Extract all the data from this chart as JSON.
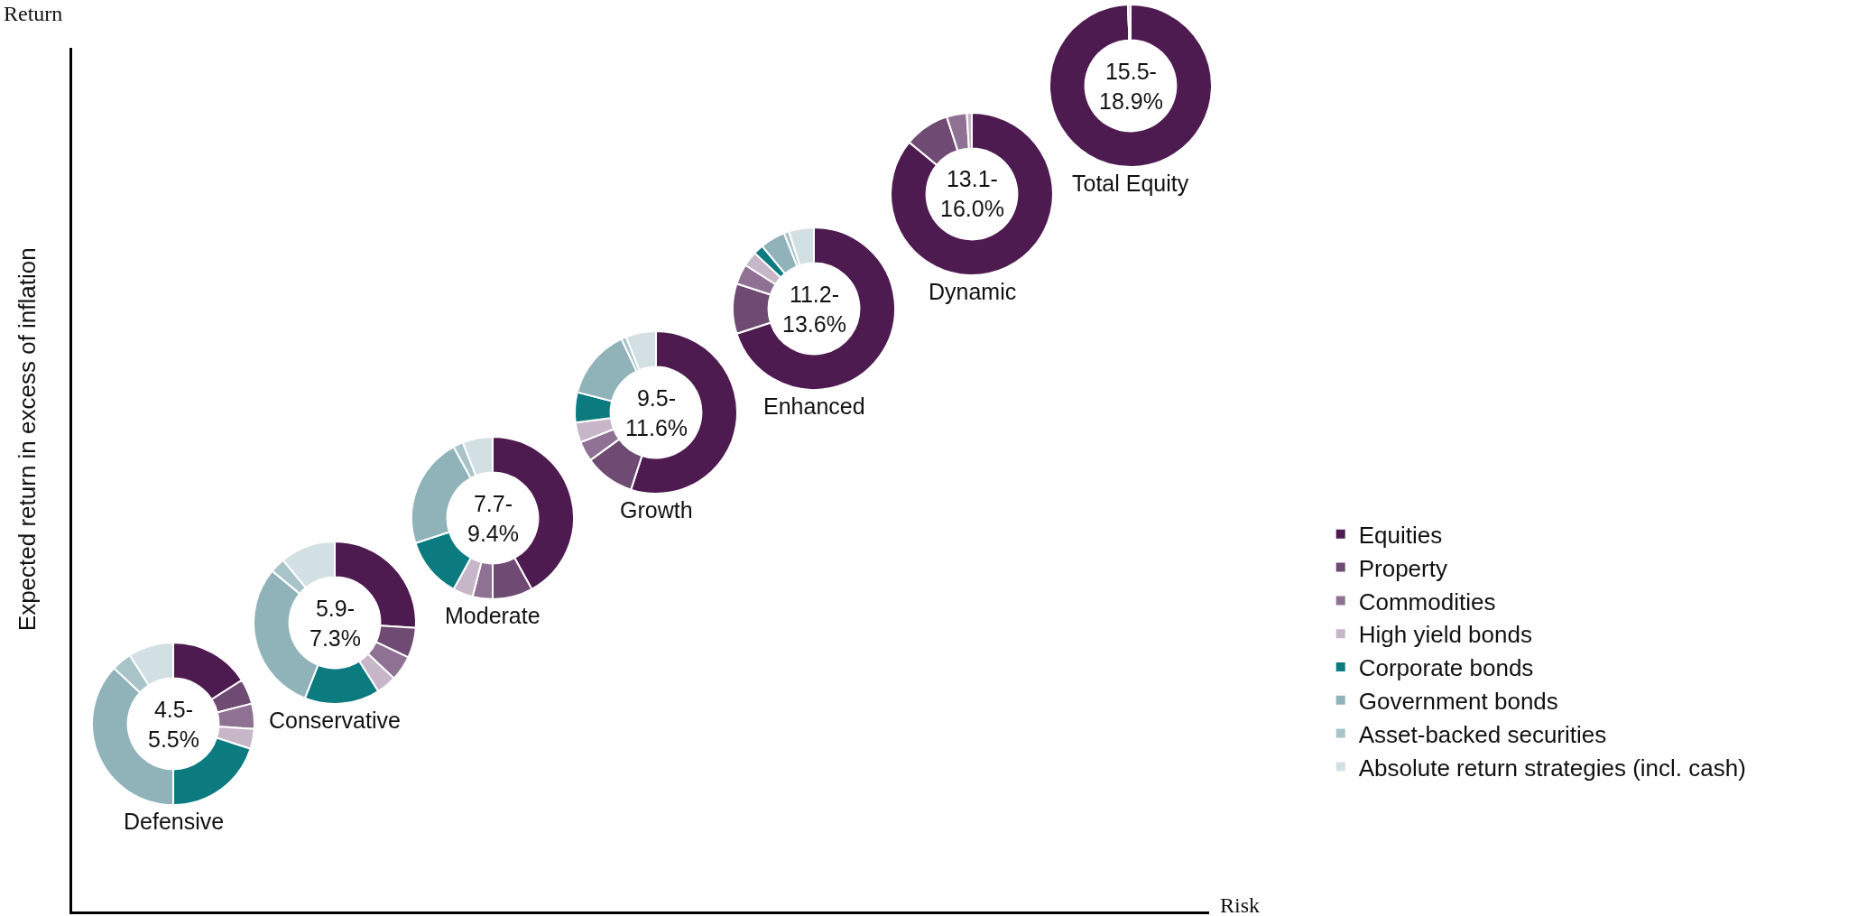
{
  "chart_data": [
    {
      "type": "other",
      "xlabel": "Risk",
      "ylabel": "Expected return in excess of inflation",
      "annotations": [
        "Return"
      ]
    },
    {
      "type": "donut",
      "legend": "right",
      "categories": [
        "Equities",
        "Property",
        "Commodities",
        "High yield bonds",
        "Corporate bonds",
        "Government bonds",
        "Asset-backed securities",
        "Absolute return strategies (incl. cash)"
      ],
      "colors": [
        "#4e1b50",
        "#6f4a72",
        "#8f7293",
        "#c7b6c8",
        "#0b7b80",
        "#8fb3b8",
        "#a9c4c8",
        "#d3e0e3"
      ],
      "series": [
        {
          "name": "Defensive",
          "values": [
            16,
            5,
            5,
            4,
            20,
            37,
            4,
            9
          ]
        },
        {
          "name": "Conservative",
          "values": [
            26,
            6,
            5,
            4,
            15,
            30,
            3,
            11
          ]
        },
        {
          "name": "Moderate",
          "values": [
            42,
            8,
            4,
            4,
            12,
            22,
            2,
            6
          ]
        },
        {
          "name": "Growth",
          "values": [
            55,
            10,
            4,
            4,
            6,
            14,
            1,
            6
          ]
        },
        {
          "name": "Enhanced",
          "values": [
            70,
            10,
            4,
            3,
            2,
            5,
            1,
            5
          ]
        },
        {
          "name": "Dynamic",
          "values": [
            86,
            9,
            4,
            1,
            0,
            0,
            0,
            0
          ]
        },
        {
          "name": "Total Equity",
          "values": [
            99.5,
            0,
            0,
            0.5,
            0,
            0,
            0,
            0
          ]
        }
      ],
      "annotations": [
        "4.5-5.5%",
        "5.9-7.3%",
        "7.7-9.4%",
        "9.5-11.6%",
        "11.2-13.6%",
        "13.1-16.0%",
        "15.5-18.9%"
      ]
    }
  ]
}
